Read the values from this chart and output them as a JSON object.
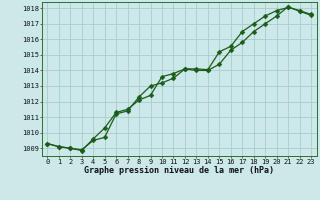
{
  "title": "Graphe pression niveau de la mer (hPa)",
  "bg_color": "#cce8e8",
  "line_color": "#1a5c1a",
  "grid_color": "#a8cccc",
  "x_ticks": [
    0,
    1,
    2,
    3,
    4,
    5,
    6,
    7,
    8,
    9,
    10,
    11,
    12,
    13,
    14,
    15,
    16,
    17,
    18,
    19,
    20,
    21,
    22,
    23
  ],
  "y_min": 1009,
  "y_max": 1018,
  "y_ticks": [
    1009,
    1010,
    1011,
    1012,
    1013,
    1014,
    1015,
    1016,
    1017,
    1018
  ],
  "series1_x": [
    0,
    1,
    2,
    3,
    4,
    5,
    6,
    7,
    8,
    9,
    10,
    11,
    12,
    13,
    14,
    15,
    16,
    17,
    18,
    19,
    20,
    21,
    22,
    23
  ],
  "series1_y": [
    1009.3,
    1009.1,
    1009.0,
    1008.9,
    1009.5,
    1009.7,
    1011.2,
    1011.4,
    1012.3,
    1013.0,
    1013.2,
    1013.5,
    1014.1,
    1014.1,
    1014.05,
    1015.2,
    1015.55,
    1016.5,
    1017.0,
    1017.5,
    1017.85,
    1018.05,
    1017.85,
    1017.6
  ],
  "series2_x": [
    0,
    1,
    2,
    3,
    4,
    5,
    6,
    7,
    8,
    9,
    10,
    11,
    12,
    13,
    14,
    15,
    16,
    17,
    18,
    19,
    20,
    21,
    22,
    23
  ],
  "series2_y": [
    1009.3,
    1009.1,
    1009.0,
    1008.85,
    1009.6,
    1010.3,
    1011.3,
    1011.5,
    1012.1,
    1012.4,
    1013.6,
    1013.8,
    1014.1,
    1014.0,
    1014.0,
    1014.4,
    1015.3,
    1015.8,
    1016.5,
    1017.0,
    1017.5,
    1018.1,
    1017.8,
    1017.55
  ],
  "tick_fontsize": 5.0,
  "xlabel_fontsize": 6.0,
  "marker_size": 2.5,
  "line_width": 0.9
}
